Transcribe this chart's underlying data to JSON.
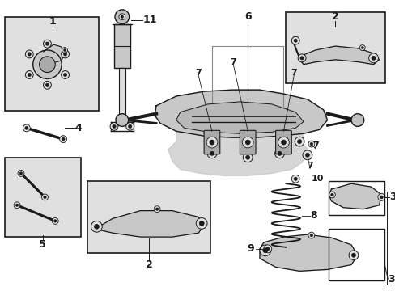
{
  "bg_color": "#ffffff",
  "box_fill": "#e0e0e0",
  "lc": "#1a1a1a",
  "gray": "#888888",
  "fig_width": 4.89,
  "fig_height": 3.6,
  "dpi": 100
}
